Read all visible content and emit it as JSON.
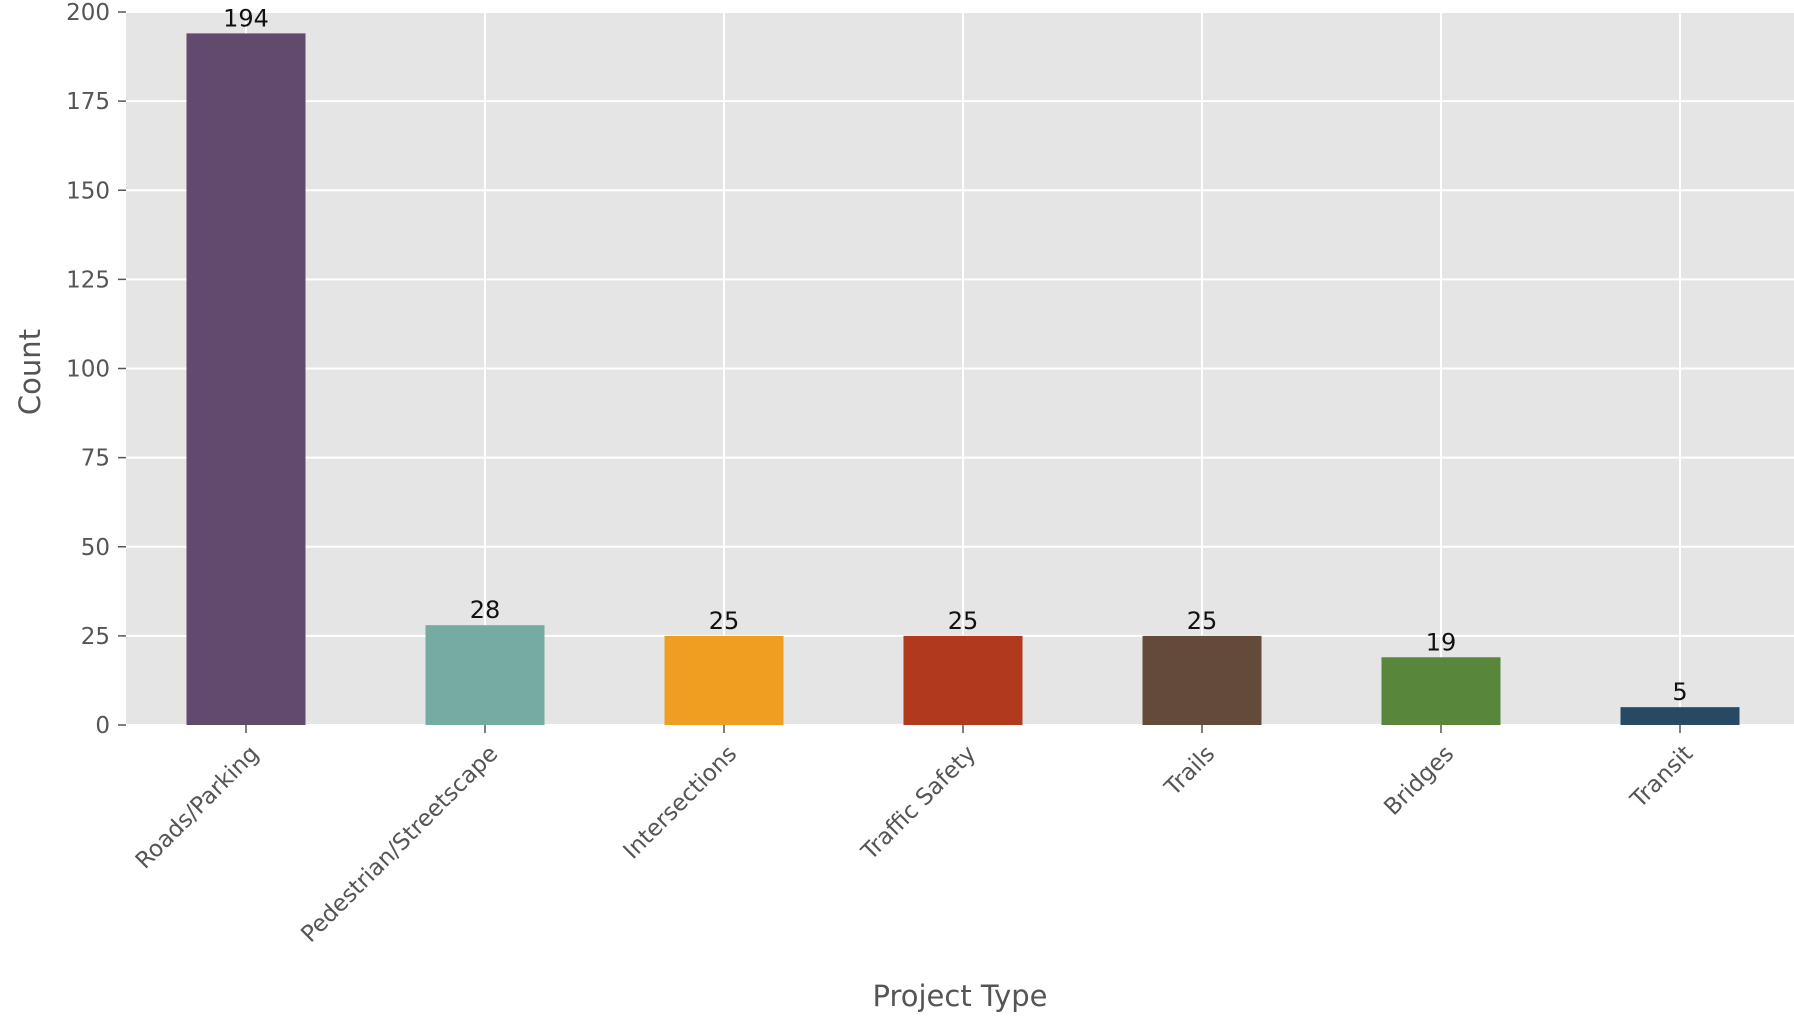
{
  "chart_data": {
    "type": "bar",
    "title": "",
    "xlabel": "Project Type",
    "ylabel": "Count",
    "categories": [
      "Roads/Parking",
      "Pedestrian/Streetscape",
      "Intersections",
      "Traffic Safety",
      "Trails",
      "Bridges",
      "Transit"
    ],
    "values": [
      194,
      28,
      25,
      25,
      25,
      19,
      5
    ],
    "colors": [
      "#62496e",
      "#76aba1",
      "#f09e21",
      "#b0391e",
      "#634a3b",
      "#58873c",
      "#274963"
    ],
    "ylim": [
      0,
      200
    ],
    "yticks": [
      0,
      25,
      50,
      75,
      100,
      125,
      150,
      175,
      200
    ],
    "grid": true,
    "background": "#e5e5e5",
    "legend": "none"
  }
}
